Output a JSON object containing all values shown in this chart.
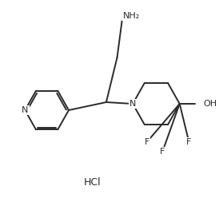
{
  "bg_color": "#ffffff",
  "line_color": "#2a2a2a",
  "text_color": "#2a2a2a",
  "line_width": 1.4,
  "hcl_text": "HCl",
  "nh2_text": "NH₂",
  "oh_text": "OH",
  "n_pip_text": "N",
  "n_pyr_text": "N",
  "f_text": "F",
  "font_size": 7.5
}
